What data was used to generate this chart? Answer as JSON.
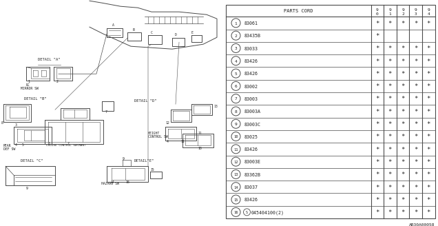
{
  "diagram_ref": "AB30A00058",
  "rows": [
    {
      "num": "1",
      "part": "83061",
      "cols": [
        "*",
        "*",
        "*",
        "*",
        "*"
      ]
    },
    {
      "num": "2",
      "part": "83435B",
      "cols": [
        "*",
        "",
        "",
        "",
        ""
      ]
    },
    {
      "num": "3",
      "part": "83033",
      "cols": [
        "*",
        "*",
        "*",
        "*",
        "*"
      ]
    },
    {
      "num": "4",
      "part": "83426",
      "cols": [
        "*",
        "*",
        "*",
        "*",
        "*"
      ]
    },
    {
      "num": "5",
      "part": "83426",
      "cols": [
        "*",
        "*",
        "*",
        "*",
        "*"
      ]
    },
    {
      "num": "6",
      "part": "83002",
      "cols": [
        "*",
        "*",
        "*",
        "*",
        "*"
      ]
    },
    {
      "num": "7",
      "part": "83003",
      "cols": [
        "*",
        "*",
        "*",
        "*",
        "*"
      ]
    },
    {
      "num": "8",
      "part": "83003A",
      "cols": [
        "*",
        "*",
        "*",
        "*",
        "*"
      ]
    },
    {
      "num": "9",
      "part": "83003C",
      "cols": [
        "*",
        "*",
        "*",
        "*",
        "*"
      ]
    },
    {
      "num": "10",
      "part": "83025",
      "cols": [
        "*",
        "*",
        "*",
        "*",
        "*"
      ]
    },
    {
      "num": "11",
      "part": "83426",
      "cols": [
        "*",
        "*",
        "*",
        "*",
        "*"
      ]
    },
    {
      "num": "12",
      "part": "83003E",
      "cols": [
        "*",
        "*",
        "*",
        "*",
        "*"
      ]
    },
    {
      "num": "13",
      "part": "83362B",
      "cols": [
        "*",
        "*",
        "*",
        "*",
        "*"
      ]
    },
    {
      "num": "14",
      "part": "83037",
      "cols": [
        "*",
        "*",
        "*",
        "*",
        "*"
      ]
    },
    {
      "num": "15",
      "part": "83426",
      "cols": [
        "*",
        "*",
        "*",
        "*",
        "*"
      ]
    },
    {
      "num": "16",
      "part": "S045404100(2)",
      "cols": [
        "*",
        "*",
        "*",
        "*",
        "*"
      ]
    }
  ],
  "bg_color": "#ffffff",
  "line_color": "#4a4a4a",
  "text_color": "#222222"
}
